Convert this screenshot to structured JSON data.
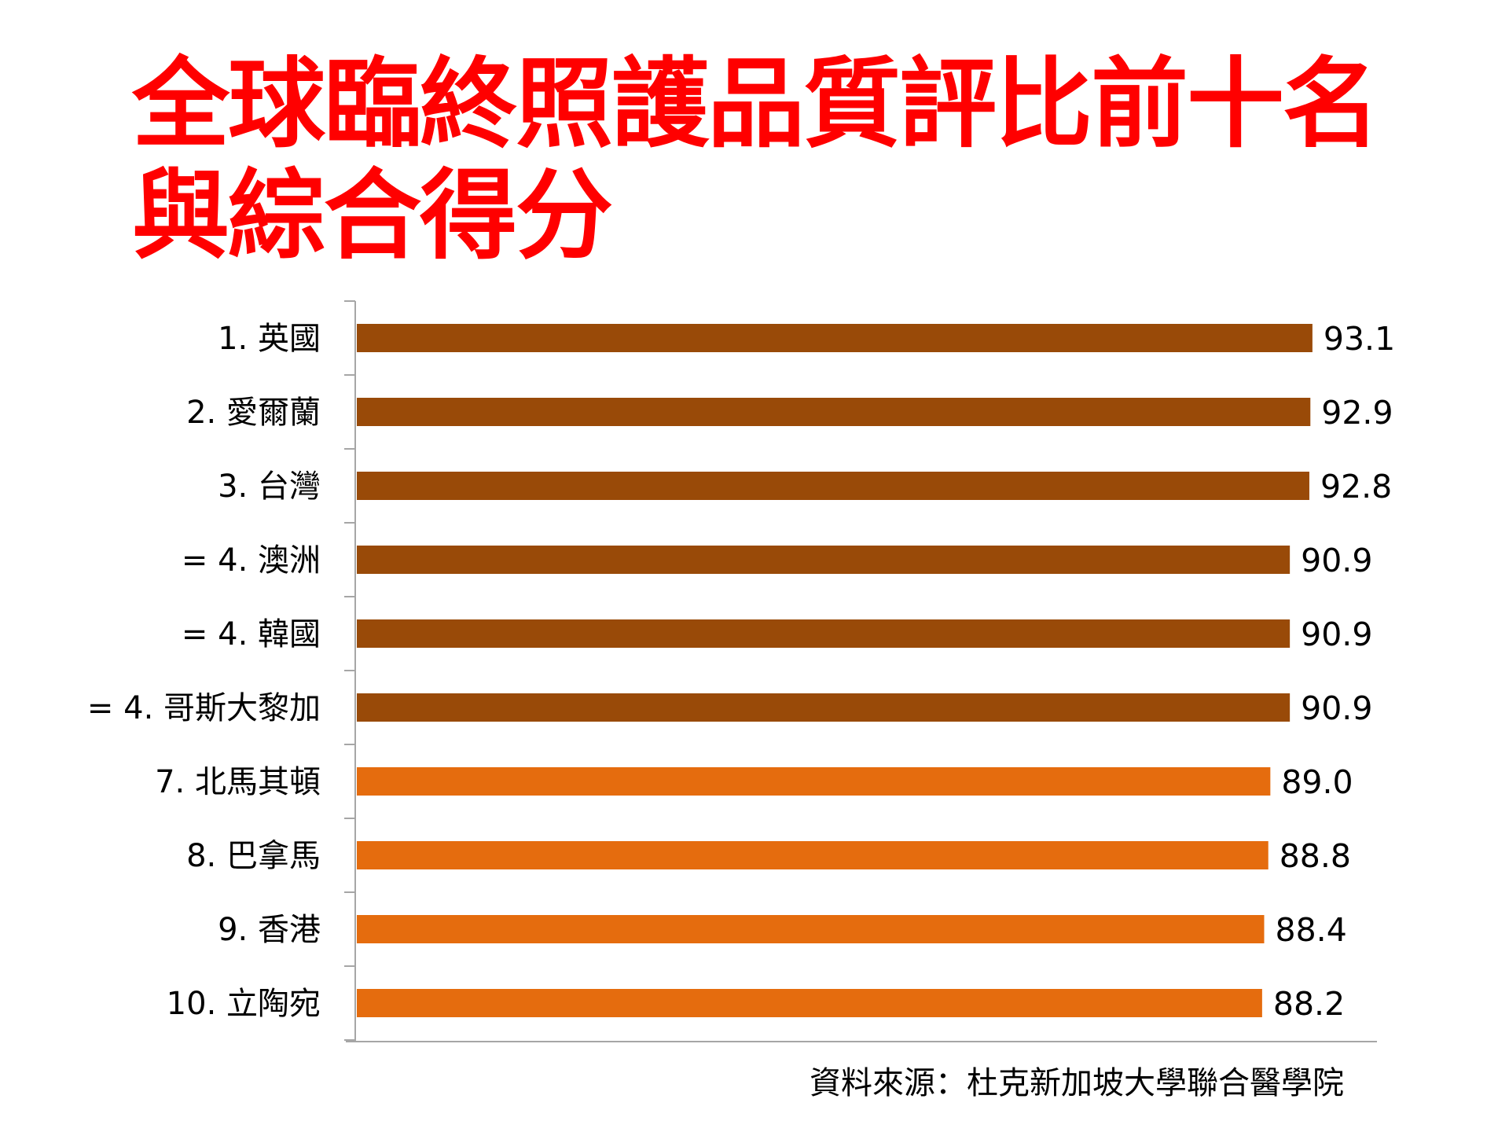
{
  "chart_data": {
    "type": "bar",
    "orientation": "horizontal",
    "title_line1": "全球臨終照護品質評比前十名",
    "title_line2": "與綜合得分",
    "categories": [
      "1. 英國",
      "2. 愛爾蘭",
      "3. 台灣",
      "= 4. 澳洲",
      "= 4. 韓國",
      "= 4. 哥斯大黎加",
      "7. 北馬其頓",
      "8. 巴拿馬",
      "9. 香港",
      "10. 立陶宛"
    ],
    "values": [
      93.1,
      92.9,
      92.8,
      90.9,
      90.9,
      90.9,
      89.0,
      88.8,
      88.4,
      88.2
    ],
    "value_labels": [
      "93.1",
      "92.9",
      "92.8",
      "90.9",
      "90.9",
      "90.9",
      "89.0",
      "88.8",
      "88.4",
      "88.2"
    ],
    "bar_colors": [
      "#994a08",
      "#994a08",
      "#994a08",
      "#994a08",
      "#994a08",
      "#994a08",
      "#e56c0e",
      "#e56c0e",
      "#e56c0e",
      "#e56c0e"
    ],
    "xlim": [
      0,
      100
    ],
    "grid": false,
    "legend": "none",
    "source": "資料來源：杜克新加坡大學聯合醫學院"
  }
}
